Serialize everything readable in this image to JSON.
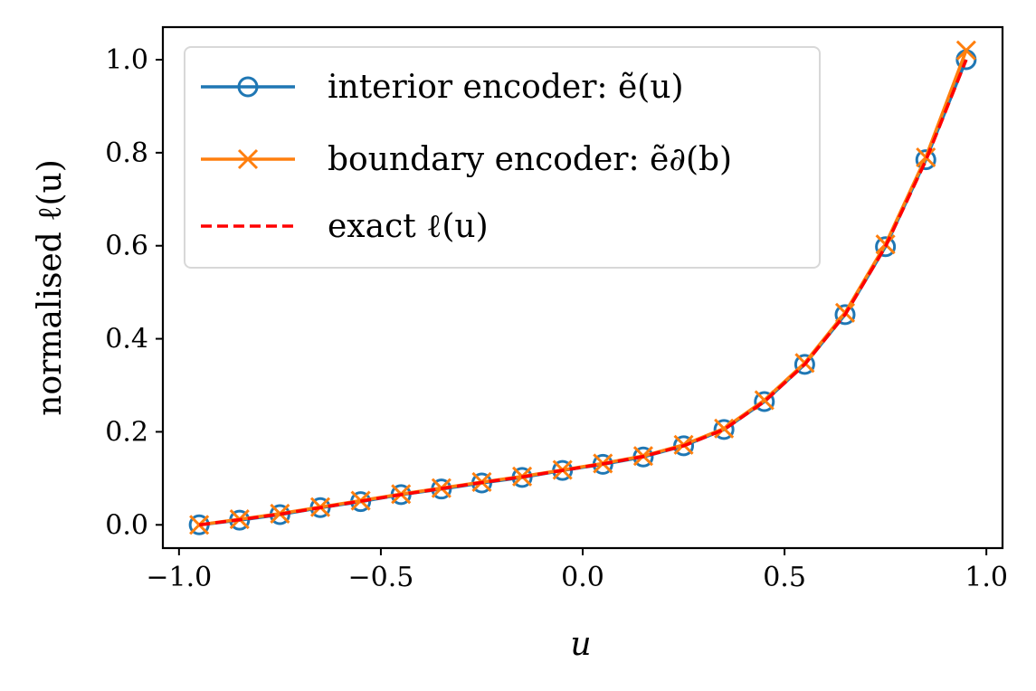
{
  "chart_data": {
    "type": "line",
    "xlabel": "u",
    "ylabel": "normalised ℓ(u)",
    "xlim": [
      -1.04,
      1.04
    ],
    "ylim": [
      -0.05,
      1.07
    ],
    "xticks": [
      -1.0,
      -0.5,
      0.0,
      0.5,
      1.0
    ],
    "xtick_labels": [
      "−1.0",
      "−0.5",
      "0.0",
      "0.5",
      "1.0"
    ],
    "yticks": [
      0.0,
      0.2,
      0.4,
      0.6,
      0.8,
      1.0
    ],
    "ytick_labels": [
      "0.0",
      "0.2",
      "0.4",
      "0.6",
      "0.8",
      "1.0"
    ],
    "grid": false,
    "legend_position": "top-left",
    "series": [
      {
        "name": "interior encoder: ẽ(u)",
        "color": "#1f77b4",
        "marker": "circle-open",
        "line": "solid",
        "x": [
          -0.95,
          -0.85,
          -0.75,
          -0.65,
          -0.55,
          -0.45,
          -0.35,
          -0.25,
          -0.15,
          -0.05,
          0.05,
          0.15,
          0.25,
          0.35,
          0.45,
          0.55,
          0.65,
          0.75,
          0.85,
          0.95
        ],
        "y": [
          0.0,
          0.01,
          0.022,
          0.037,
          0.05,
          0.065,
          0.077,
          0.09,
          0.102,
          0.117,
          0.13,
          0.146,
          0.17,
          0.205,
          0.265,
          0.345,
          0.452,
          0.598,
          0.785,
          1.0
        ]
      },
      {
        "name": "boundary encoder: ẽ∂(b)",
        "color": "#ff7f0e",
        "marker": "x",
        "line": "solid",
        "x": [
          -0.95,
          -0.85,
          -0.75,
          -0.65,
          -0.55,
          -0.45,
          -0.35,
          -0.25,
          -0.15,
          -0.05,
          0.05,
          0.15,
          0.25,
          0.35,
          0.45,
          0.55,
          0.65,
          0.75,
          0.85,
          0.95
        ],
        "y": [
          0.0,
          0.012,
          0.024,
          0.038,
          0.052,
          0.066,
          0.079,
          0.092,
          0.104,
          0.118,
          0.132,
          0.148,
          0.172,
          0.207,
          0.268,
          0.348,
          0.456,
          0.603,
          0.79,
          1.02
        ]
      },
      {
        "name": "exact ℓ(u)",
        "color": "#ff0000",
        "marker": "none",
        "line": "dashed",
        "x": [
          -0.95,
          -0.85,
          -0.75,
          -0.65,
          -0.55,
          -0.45,
          -0.35,
          -0.25,
          -0.15,
          -0.05,
          0.05,
          0.15,
          0.25,
          0.35,
          0.45,
          0.55,
          0.65,
          0.75,
          0.85,
          0.95
        ],
        "y": [
          0.0,
          0.011,
          0.023,
          0.037,
          0.051,
          0.065,
          0.078,
          0.091,
          0.103,
          0.117,
          0.131,
          0.147,
          0.17,
          0.205,
          0.265,
          0.345,
          0.452,
          0.598,
          0.783,
          1.0
        ]
      }
    ]
  }
}
